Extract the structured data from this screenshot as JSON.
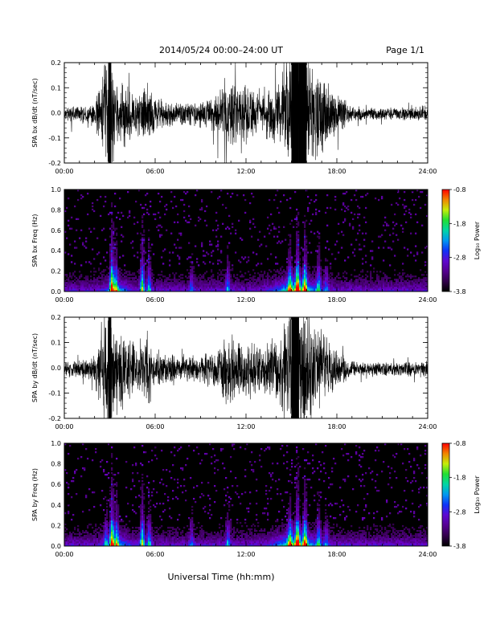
{
  "header": {
    "title": "2014/05/24  00:00–24:00 UT",
    "page": "Page 1/1"
  },
  "xlabel": "Universal Time (hh:mm)",
  "time_ticks": [
    "00:00",
    "06:00",
    "12:00",
    "18:00",
    "24:00"
  ],
  "colorbar": {
    "label": "Log₁₀ Power",
    "ticks": [
      "-0.8",
      "-1.8",
      "-2.8",
      "-3.8"
    ],
    "range": [
      -3.8,
      -0.8
    ]
  },
  "chart_data": [
    {
      "type": "line",
      "ylabel": "SPA bx dB/dt (nT/sec)",
      "ylim": [
        -0.2,
        0.2
      ],
      "yticks": [
        "0.2",
        "0.1",
        "0.0",
        "-0.1",
        "-0.2"
      ],
      "xlim_hours": [
        0,
        24
      ],
      "envelope_hours": [
        0,
        1,
        2,
        2.9,
        3.1,
        3.4,
        3.8,
        4.5,
        5,
        5.5,
        6,
        7,
        8,
        9,
        10,
        10.5,
        11,
        12,
        12.5,
        13,
        14,
        14.5,
        15,
        15.5,
        16,
        16.5,
        17,
        17.5,
        18,
        19,
        20,
        21,
        22,
        23,
        24
      ],
      "envelope_amplitude": [
        0.02,
        0.025,
        0.03,
        0.2,
        0.2,
        0.07,
        0.12,
        0.07,
        0.06,
        0.1,
        0.05,
        0.035,
        0.035,
        0.04,
        0.06,
        0.09,
        0.12,
        0.09,
        0.07,
        0.06,
        0.09,
        0.12,
        0.2,
        0.2,
        0.2,
        0.15,
        0.12,
        0.09,
        0.06,
        0.025,
        0.018,
        0.018,
        0.02,
        0.02,
        0.025
      ]
    },
    {
      "type": "heatmap",
      "ylabel": "SPA bx Freq (Hz)",
      "ylim": [
        0.0,
        1.0
      ],
      "yticks": [
        "1.0",
        "0.8",
        "0.6",
        "0.4",
        "0.2",
        "0.0"
      ],
      "xlim_hours": [
        0,
        24
      ],
      "bursts_hours": [
        3.15,
        3.4,
        5.15,
        5.6,
        8.4,
        10.8,
        14.9,
        15.4,
        15.9,
        16.8,
        17.3
      ],
      "burst_strength": [
        1.0,
        0.6,
        0.8,
        0.5,
        0.3,
        0.4,
        0.6,
        0.9,
        0.8,
        0.5,
        0.3
      ]
    },
    {
      "type": "line",
      "ylabel": "SPA by dB/dt (nT/sec)",
      "ylim": [
        -0.2,
        0.2
      ],
      "yticks": [
        "0.2",
        "0.1",
        "0.0",
        "-0.1",
        "-0.2"
      ],
      "xlim_hours": [
        0,
        24
      ],
      "envelope_hours": [
        0,
        1,
        2,
        2.9,
        3.1,
        3.4,
        3.8,
        4.5,
        5,
        5.5,
        6,
        7,
        8,
        9,
        10,
        10.5,
        11,
        12,
        12.5,
        13,
        14,
        14.5,
        15,
        15.5,
        16,
        16.5,
        17,
        17.5,
        18,
        19,
        20,
        21,
        22,
        23,
        24
      ],
      "envelope_amplitude": [
        0.02,
        0.025,
        0.04,
        0.2,
        0.2,
        0.1,
        0.14,
        0.08,
        0.06,
        0.11,
        0.05,
        0.04,
        0.04,
        0.04,
        0.06,
        0.09,
        0.11,
        0.08,
        0.07,
        0.07,
        0.1,
        0.14,
        0.2,
        0.2,
        0.19,
        0.14,
        0.11,
        0.08,
        0.05,
        0.025,
        0.02,
        0.02,
        0.02,
        0.02,
        0.025
      ]
    },
    {
      "type": "heatmap",
      "ylabel": "SPA by Freq (Hz)",
      "ylim": [
        0.0,
        1.0
      ],
      "yticks": [
        "1.0",
        "0.8",
        "0.6",
        "0.4",
        "0.2",
        "0.0"
      ],
      "xlim_hours": [
        0,
        24
      ],
      "bursts_hours": [
        2.75,
        3.15,
        3.45,
        5.15,
        5.6,
        8.4,
        10.8,
        14.9,
        15.4,
        15.9,
        16.8,
        17.3
      ],
      "burst_strength": [
        0.4,
        1.0,
        0.6,
        0.8,
        0.5,
        0.3,
        0.4,
        0.6,
        0.9,
        0.8,
        0.5,
        0.3
      ]
    }
  ]
}
